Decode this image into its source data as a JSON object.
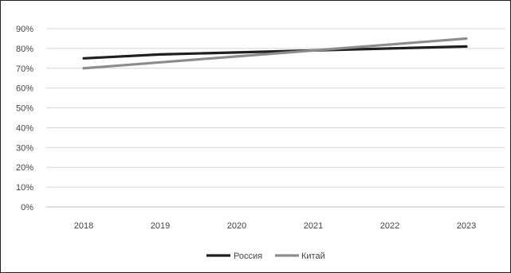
{
  "chart_data": {
    "type": "line",
    "title": "",
    "xlabel": "",
    "ylabel": "",
    "x": [
      "2018",
      "2019",
      "2020",
      "2021",
      "2022",
      "2023"
    ],
    "ylim": [
      0,
      90
    ],
    "yticks": [
      0,
      10,
      20,
      30,
      40,
      50,
      60,
      70,
      80,
      90
    ],
    "ytick_labels": [
      "0%",
      "10%",
      "20%",
      "30%",
      "40%",
      "50%",
      "60%",
      "70%",
      "80%",
      "90%"
    ],
    "grid": "horizontal",
    "legend_position": "bottom",
    "series": [
      {
        "name": "Россия",
        "values": [
          75,
          77,
          78,
          79,
          80,
          81
        ],
        "color": "#1f1f1f"
      },
      {
        "name": "Китай",
        "values": [
          70,
          73,
          76,
          79,
          82,
          85
        ],
        "color": "#8c8c8c"
      }
    ],
    "colors": {
      "gridline": "#d4d4d4",
      "axis": "#bfbfbf",
      "text": "#444444"
    }
  }
}
